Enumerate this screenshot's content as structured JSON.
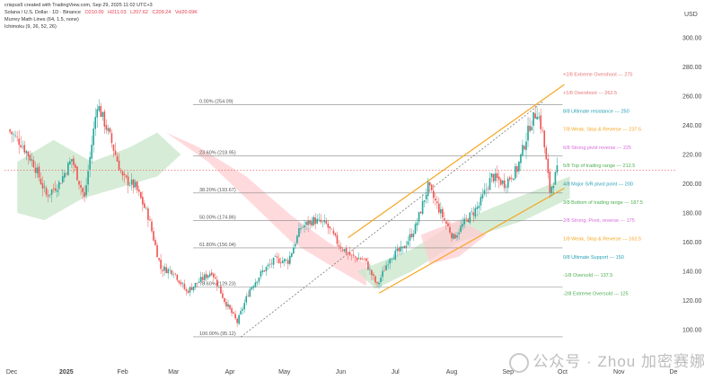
{
  "header": {
    "credit": "crispus9 created with TradingView.com, Sep 29, 2025 11:02 UTC+3",
    "symbol": "Solana / U.S. Dollar · 1D · Binance",
    "open": "O210.00",
    "high": "H211.03",
    "low": "L207.62",
    "close": "C209.24",
    "vol": "Vol20.69K",
    "indicator1": "Murrey Math Lines (64, 1.5, none)",
    "indicator2": "Ichimoku (9, 26, 52, 26)"
  },
  "axis": {
    "currency": "USD"
  },
  "watermark": "公众号 · Zhou 加密赛娜",
  "chart_data": {
    "type": "candlestick",
    "title": "Solana / U.S. Dollar · 1D · Binance",
    "y_unit": "USD",
    "ylim": [
      95,
      305
    ],
    "y_ticks": [
      "300.00",
      "280.00",
      "260.00",
      "240.00",
      "220.00",
      "200.00",
      "180.00",
      "160.00",
      "140.00",
      "120.00",
      "100.00"
    ],
    "x_ticks": [
      "Dec",
      "2025",
      "Feb",
      "Mar",
      "Apr",
      "May",
      "Jun",
      "Jul",
      "Aug",
      "Sep",
      "Oct",
      "Nov",
      "De"
    ],
    "x_range": [
      "2024-11-28",
      "2025-12-02"
    ],
    "colors": {
      "up": "#26a69a",
      "down": "#ef5350",
      "channel": "#f5a623",
      "cloud_bull": "#c8e6c9",
      "cloud_bear": "#ffcdd2"
    },
    "current_price": 209.24,
    "daily_closes_path": [
      {
        "date": "2024-12-01",
        "close": 237
      },
      {
        "date": "2024-12-08",
        "close": 228
      },
      {
        "date": "2024-12-15",
        "close": 214
      },
      {
        "date": "2024-12-22",
        "close": 192
      },
      {
        "date": "2024-12-29",
        "close": 200
      },
      {
        "date": "2025-01-05",
        "close": 217
      },
      {
        "date": "2025-01-12",
        "close": 190
      },
      {
        "date": "2025-01-19",
        "close": 255
      },
      {
        "date": "2025-01-26",
        "close": 232
      },
      {
        "date": "2025-02-02",
        "close": 204
      },
      {
        "date": "2025-02-09",
        "close": 198
      },
      {
        "date": "2025-02-16",
        "close": 178
      },
      {
        "date": "2025-02-23",
        "close": 142
      },
      {
        "date": "2025-03-02",
        "close": 140
      },
      {
        "date": "2025-03-09",
        "close": 126
      },
      {
        "date": "2025-03-16",
        "close": 133
      },
      {
        "date": "2025-03-23",
        "close": 140
      },
      {
        "date": "2025-03-30",
        "close": 120
      },
      {
        "date": "2025-04-06",
        "close": 105
      },
      {
        "date": "2025-04-13",
        "close": 128
      },
      {
        "date": "2025-04-20",
        "close": 140
      },
      {
        "date": "2025-04-27",
        "close": 148
      },
      {
        "date": "2025-05-04",
        "close": 147
      },
      {
        "date": "2025-05-11",
        "close": 170
      },
      {
        "date": "2025-05-18",
        "close": 175
      },
      {
        "date": "2025-05-25",
        "close": 172
      },
      {
        "date": "2025-06-01",
        "close": 158
      },
      {
        "date": "2025-06-08",
        "close": 150
      },
      {
        "date": "2025-06-15",
        "close": 148
      },
      {
        "date": "2025-06-22",
        "close": 130
      },
      {
        "date": "2025-06-29",
        "close": 150
      },
      {
        "date": "2025-07-06",
        "close": 155
      },
      {
        "date": "2025-07-13",
        "close": 170
      },
      {
        "date": "2025-07-20",
        "close": 198
      },
      {
        "date": "2025-07-27",
        "close": 180
      },
      {
        "date": "2025-08-03",
        "close": 163
      },
      {
        "date": "2025-08-10",
        "close": 175
      },
      {
        "date": "2025-08-17",
        "close": 185
      },
      {
        "date": "2025-08-24",
        "close": 205
      },
      {
        "date": "2025-08-31",
        "close": 200
      },
      {
        "date": "2025-09-07",
        "close": 210
      },
      {
        "date": "2025-09-14",
        "close": 240
      },
      {
        "date": "2025-09-18",
        "close": 250
      },
      {
        "date": "2025-09-21",
        "close": 235
      },
      {
        "date": "2025-09-25",
        "close": 195
      },
      {
        "date": "2025-09-29",
        "close": 209
      }
    ],
    "fib_retracement": [
      {
        "label": "0.00% (254.09)",
        "value": 254.09
      },
      {
        "label": "23.60% (218.95)",
        "value": 218.95
      },
      {
        "label": "38.20% (193.67)",
        "value": 193.67
      },
      {
        "label": "50.00% (174.86)",
        "value": 174.86
      },
      {
        "label": "61.80% (156.04)",
        "value": 156.04
      },
      {
        "label": "78.60% (129.23)",
        "value": 129.23
      },
      {
        "label": "100.00% (95.12)",
        "value": 95.12
      }
    ],
    "murrey_levels": [
      {
        "label": "+2/8 Extreme Overshoot --- 275",
        "value": 275,
        "color": "#e57373"
      },
      {
        "label": "+1/8 Overshoot --- 262.5",
        "value": 262.5,
        "color": "#e57373"
      },
      {
        "label": "8/8 Ultimate resistance --- 250",
        "value": 250,
        "color": "#26a0b5"
      },
      {
        "label": "7/8 Weak, Stop & Reverse --- 237.5",
        "value": 237.5,
        "color": "#f5a623"
      },
      {
        "label": "6/8 Strong pivot reverse --- 225",
        "value": 225,
        "color": "#d96ad9"
      },
      {
        "label": "5/8 Top of trading range --- 212.5",
        "value": 212.5,
        "color": "#4caf50"
      },
      {
        "label": "4/8 Major S/R pivot point --- 200",
        "value": 200,
        "color": "#26a0b5"
      },
      {
        "label": "3/8 Bottom of trading range --- 187.5",
        "value": 187.5,
        "color": "#4caf50"
      },
      {
        "label": "2/8 Strong, Pivot, reverse --- 175",
        "value": 175,
        "color": "#d96ad9"
      },
      {
        "label": "1/8 Weak, Stop & Reverse --- 162.5",
        "value": 162.5,
        "color": "#f5a623"
      },
      {
        "label": "0/8 Ultimate Support --- 150",
        "value": 150,
        "color": "#26a0b5"
      },
      {
        "label": "-1/8 Oversold --- 137.5",
        "value": 137.5,
        "color": "#4caf50"
      },
      {
        "label": "-2/8 Extreme Oversold --- 125",
        "value": 125,
        "color": "#4caf50"
      }
    ],
    "channel": {
      "lower": [
        {
          "date": "2025-06-22",
          "value": 125
        },
        {
          "date": "2025-10-02",
          "value": 197
        }
      ],
      "upper": [
        {
          "date": "2025-06-05",
          "value": 163
        },
        {
          "date": "2025-10-02",
          "value": 268
        }
      ],
      "middle_dotted": [
        {
          "date": "2025-04-07",
          "value": 95
        },
        {
          "date": "2025-09-20",
          "value": 256
        }
      ]
    }
  }
}
